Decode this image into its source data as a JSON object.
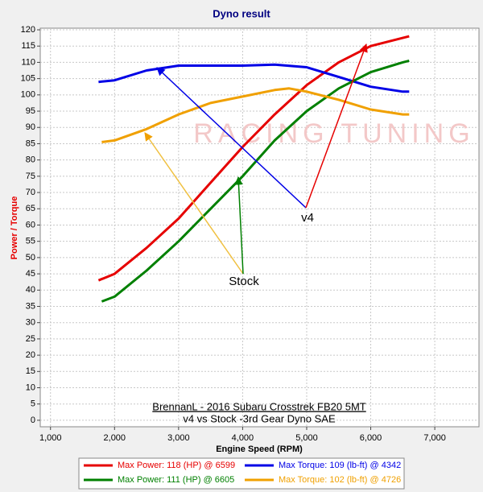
{
  "chart_data": {
    "type": "line",
    "title": "Dyno result",
    "xlabel": "Engine Speed (RPM)",
    "ylabel": "Power / Torque",
    "xlim": [
      840,
      7690
    ],
    "ylim": [
      -2,
      120.5
    ],
    "xticks": [
      {
        "value": 1000,
        "label": "1,000"
      },
      {
        "value": 2000,
        "label": "2,000"
      },
      {
        "value": 3000,
        "label": "3,000"
      },
      {
        "value": 4000,
        "label": "4,000"
      },
      {
        "value": 5000,
        "label": "5,000"
      },
      {
        "value": 6000,
        "label": "6,000"
      },
      {
        "value": 7000,
        "label": "7,000"
      }
    ],
    "yticks": [
      0,
      5,
      10,
      15,
      20,
      25,
      30,
      35,
      40,
      45,
      50,
      55,
      60,
      65,
      70,
      75,
      80,
      85,
      90,
      95,
      100,
      105,
      110,
      115,
      120
    ],
    "grid": true,
    "series": [
      {
        "name": "Max Power: 118 (HP) @ 6599",
        "color": "#e60000",
        "x": [
          1750,
          2000,
          2500,
          3000,
          3500,
          4000,
          4500,
          5000,
          5500,
          6000,
          6500,
          6600
        ],
        "values": [
          43,
          45,
          53,
          62,
          73,
          84,
          94,
          103,
          110,
          115,
          117.5,
          118
        ]
      },
      {
        "name": "Max Torque: 109 (lb-ft) @ 4342",
        "color": "#0000e6",
        "x": [
          1750,
          2000,
          2500,
          3000,
          3500,
          4000,
          4500,
          5000,
          5500,
          6000,
          6500,
          6600
        ],
        "values": [
          104,
          104.5,
          107.5,
          109,
          109,
          109,
          109.3,
          108.5,
          105.5,
          102.5,
          101,
          101
        ]
      },
      {
        "name": "Max Power: 111 (HP) @ 6605",
        "color": "#008000",
        "x": [
          1800,
          2000,
          2500,
          3000,
          3500,
          4000,
          4500,
          5000,
          5500,
          6000,
          6500,
          6600
        ],
        "values": [
          36.5,
          38,
          46,
          55,
          65,
          75,
          86,
          95,
          102,
          107,
          110,
          110.5
        ]
      },
      {
        "name": "Max Torque: 102 (lb-ft) @ 4726",
        "color": "#f0a000",
        "x": [
          1800,
          2000,
          2500,
          3000,
          3500,
          4000,
          4500,
          4726,
          5000,
          5500,
          6000,
          6500,
          6600
        ],
        "values": [
          85.5,
          86,
          89.5,
          94,
          97.5,
          99.5,
          101.5,
          102,
          101,
          98.5,
          95.5,
          94,
          94
        ]
      }
    ],
    "annotations": [
      "v4",
      "Stock",
      "BrennanL - 2016 Subaru Crosstrek FB20 5MT",
      "v4 vs Stock -3rd Gear Dyno SAE",
      "RACING TUNING"
    ]
  }
}
